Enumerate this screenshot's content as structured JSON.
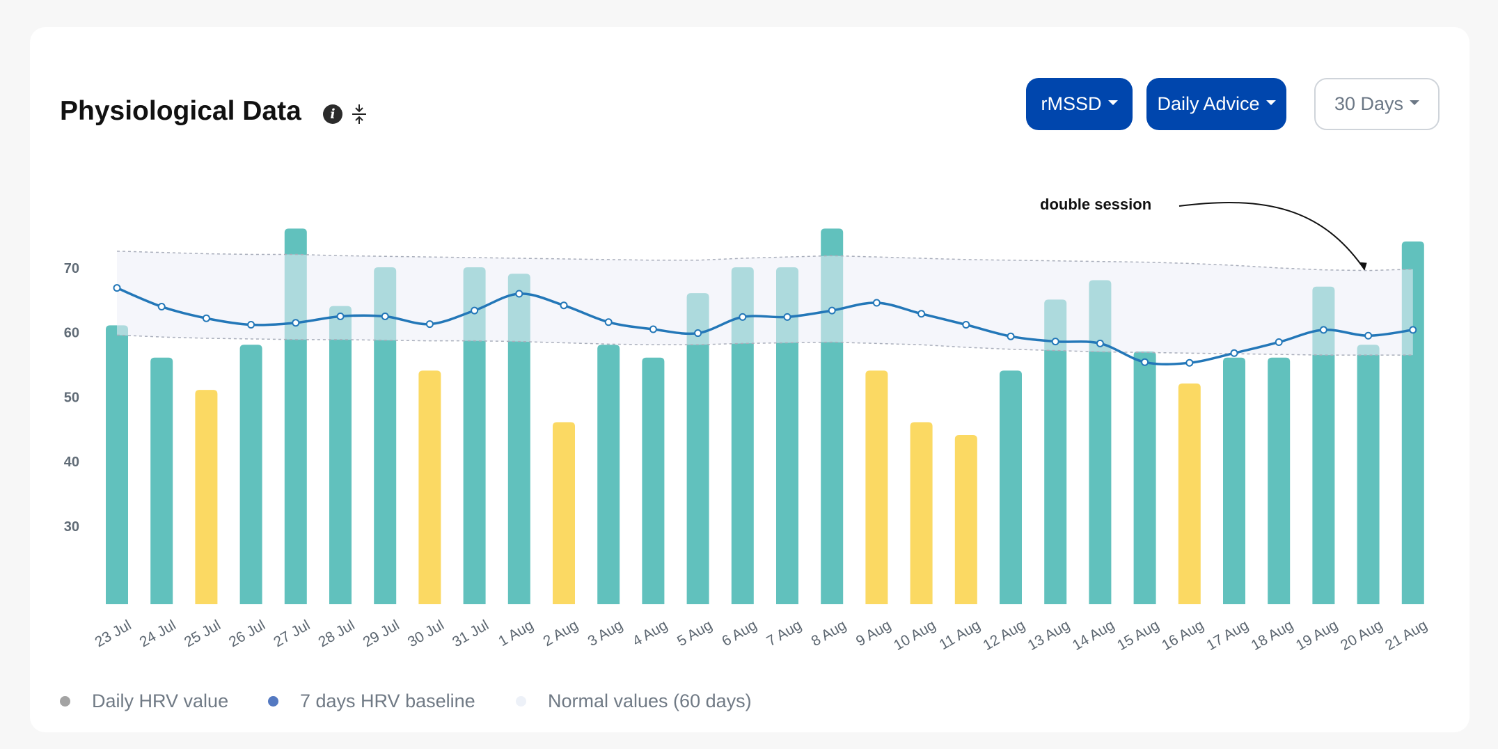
{
  "header": {
    "title": "Physiological Data",
    "info_glyph": "i",
    "buttons": {
      "metric": "rMSSD",
      "advice": "Daily Advice",
      "range": "30 Days"
    }
  },
  "colors": {
    "bar_good": "#61c1bd",
    "bar_warn": "#fbd963",
    "baseline": "#2377b8",
    "normal_band": "#eceff8",
    "button_primary": "#0046ad"
  },
  "legend": {
    "daily": {
      "label": "Daily HRV value",
      "color": "#a3a3a3"
    },
    "baseline": {
      "label": "7 days HRV baseline",
      "color": "#5479c1"
    },
    "normal": {
      "label": "Normal values (60 days)",
      "color": "#edf1f8"
    }
  },
  "chart_data": {
    "type": "bar",
    "title": "Physiological Data",
    "metric": "rMSSD",
    "xlabel": "",
    "ylabel": "",
    "ylim": [
      20,
      78
    ],
    "yticks": [
      30,
      40,
      50,
      60,
      70
    ],
    "categories": [
      "23 Jul",
      "24 Jul",
      "25 Jul",
      "26 Jul",
      "27 Jul",
      "28 Jul",
      "29 Jul",
      "30 Jul",
      "31 Jul",
      "1 Aug",
      "2 Aug",
      "3 Aug",
      "4 Aug",
      "5 Aug",
      "6 Aug",
      "7 Aug",
      "8 Aug",
      "9 Aug",
      "10 Aug",
      "11 Aug",
      "12 Aug",
      "13 Aug",
      "14 Aug",
      "15 Aug",
      "16 Aug",
      "17 Aug",
      "18 Aug",
      "19 Aug",
      "20 Aug",
      "21 Aug"
    ],
    "series": [
      {
        "name": "Daily HRV value",
        "kind": "bar",
        "values": [
          61,
          56,
          51,
          58,
          76,
          64,
          70,
          54,
          70,
          69,
          46,
          58,
          56,
          66,
          70,
          70,
          76,
          54,
          46,
          44,
          54,
          65,
          68,
          57,
          52,
          56,
          56,
          67,
          58,
          74
        ],
        "status": [
          "good",
          "good",
          "warn",
          "good",
          "good",
          "good",
          "good",
          "warn",
          "good",
          "good",
          "warn",
          "good",
          "good",
          "good",
          "good",
          "good",
          "good",
          "warn",
          "warn",
          "warn",
          "good",
          "good",
          "good",
          "good",
          "warn",
          "good",
          "good",
          "good",
          "good",
          "good"
        ]
      },
      {
        "name": "7 days HRV baseline",
        "kind": "line",
        "values": [
          66.8,
          63.9,
          62.1,
          61.1,
          61.4,
          62.4,
          62.4,
          61.2,
          63.3,
          65.9,
          64.1,
          61.5,
          60.4,
          59.8,
          62.3,
          62.3,
          63.3,
          64.5,
          62.8,
          61.1,
          59.3,
          58.5,
          58.2,
          55.3,
          55.2,
          56.7,
          58.4,
          60.3,
          59.4,
          60.3
        ]
      },
      {
        "name": "Normal values (60 days)",
        "kind": "band",
        "upper": [
          72.5,
          72.3,
          72.1,
          72.0,
          72.0,
          71.8,
          71.7,
          71.6,
          71.5,
          71.4,
          71.3,
          71.2,
          71.1,
          71.1,
          71.4,
          71.6,
          71.8,
          71.6,
          71.4,
          71.2,
          71.1,
          71.0,
          70.9,
          70.8,
          70.6,
          70.3,
          69.9,
          69.6,
          69.5,
          69.7
        ],
        "lower": [
          59.5,
          59.2,
          59.0,
          58.9,
          58.8,
          58.8,
          58.7,
          58.6,
          58.6,
          58.5,
          58.3,
          58.1,
          58.0,
          58.0,
          58.2,
          58.3,
          58.4,
          58.2,
          58.0,
          57.6,
          57.3,
          57.1,
          56.9,
          56.8,
          56.7,
          56.6,
          56.5,
          56.4,
          56.4,
          56.4
        ]
      }
    ],
    "annotations": [
      {
        "text": "double session",
        "target_category": "20 Aug",
        "target_value": 69.5
      }
    ]
  }
}
